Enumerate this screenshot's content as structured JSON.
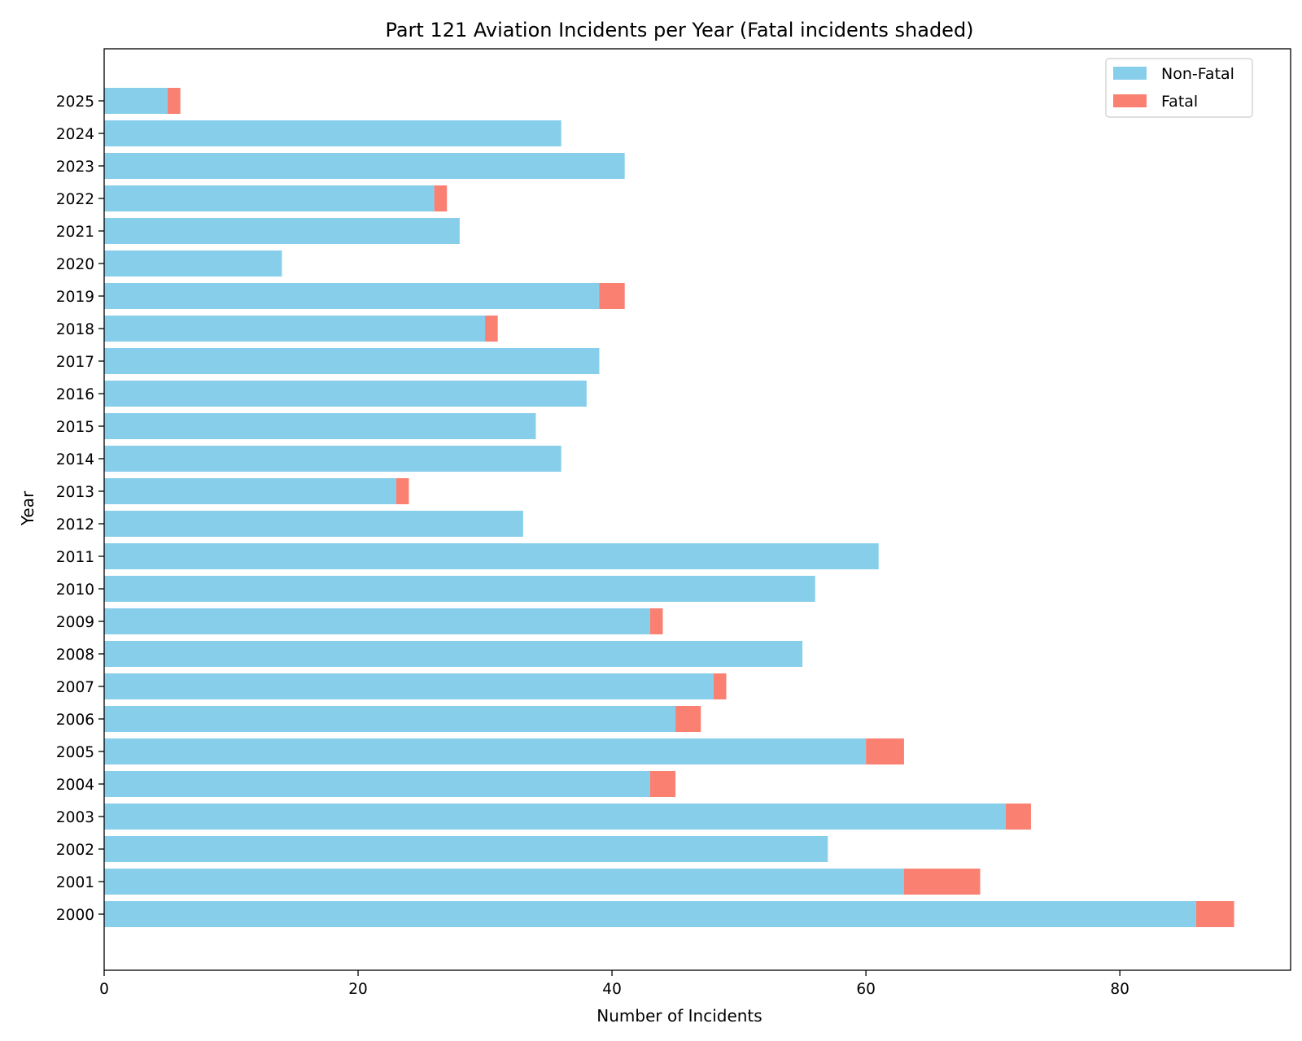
{
  "chart_data": {
    "type": "bar",
    "orientation": "horizontal",
    "stacked": true,
    "title": "Part 121 Aviation Incidents per Year (Fatal incidents shaded)",
    "xlabel": "Number of Incidents",
    "ylabel": "Year",
    "xlim": [
      0,
      93.45
    ],
    "xticks": [
      "0",
      "20",
      "40",
      "60",
      "80"
    ],
    "grid": false,
    "legend_position": "top-right",
    "categories": [
      "2000",
      "2001",
      "2002",
      "2003",
      "2004",
      "2005",
      "2006",
      "2007",
      "2008",
      "2009",
      "2010",
      "2011",
      "2012",
      "2013",
      "2014",
      "2015",
      "2016",
      "2017",
      "2018",
      "2019",
      "2020",
      "2021",
      "2022",
      "2023",
      "2024",
      "2025"
    ],
    "series": [
      {
        "name": "Non-Fatal",
        "color": "#87ceeb",
        "values": [
          86,
          63,
          57,
          71,
          43,
          60,
          45,
          48,
          55,
          43,
          56,
          61,
          33,
          23,
          36,
          34,
          38,
          39,
          30,
          39,
          14,
          28,
          26,
          41,
          36,
          5
        ]
      },
      {
        "name": "Fatal",
        "color": "#fa8072",
        "values": [
          3,
          6,
          0,
          2,
          2,
          3,
          2,
          1,
          0,
          1,
          0,
          0,
          0,
          1,
          0,
          0,
          0,
          0,
          1,
          2,
          0,
          0,
          1,
          0,
          0,
          1
        ]
      }
    ]
  }
}
